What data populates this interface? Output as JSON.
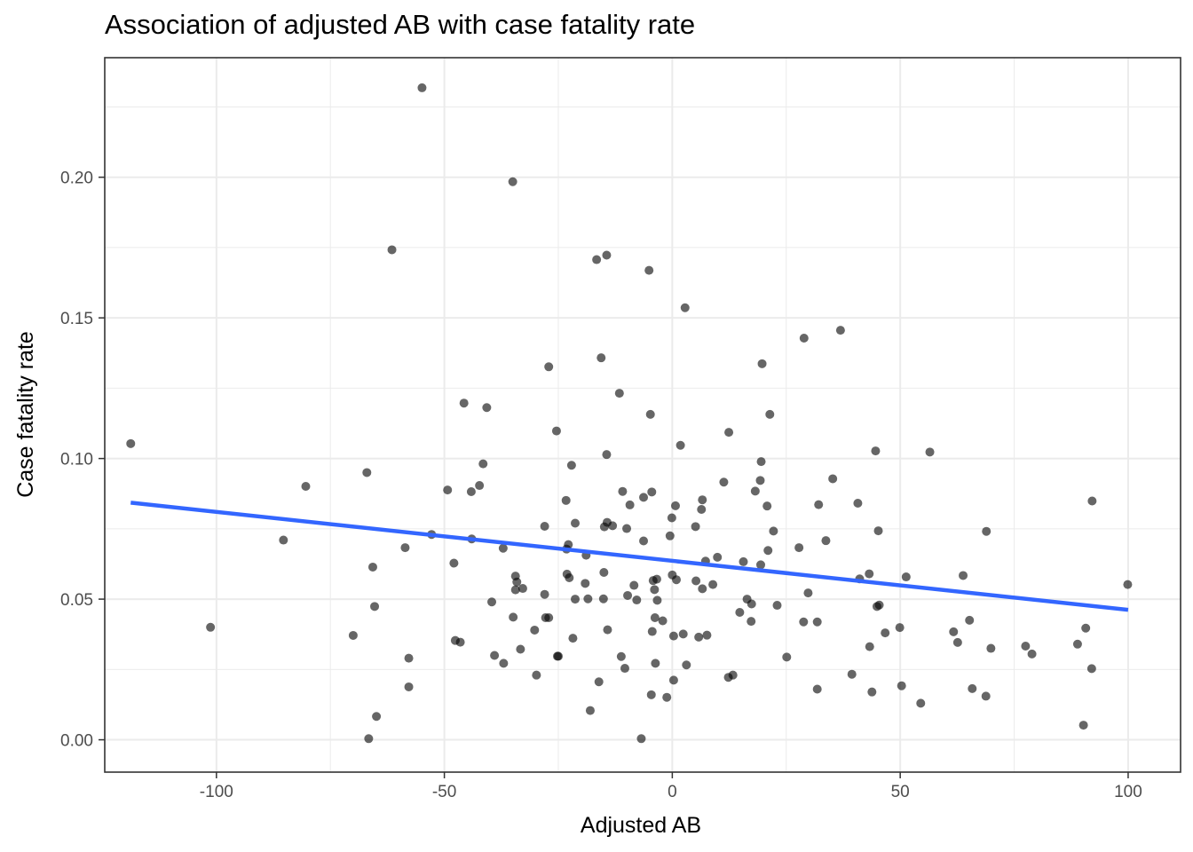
{
  "chart_data": {
    "type": "scatter",
    "title": "Association of adjusted AB with case fatality rate",
    "xlabel": "Adjusted AB",
    "ylabel": "Case fatality rate",
    "xlim": [
      -124.5,
      111.5
    ],
    "ylim": [
      -0.0115,
      0.2425
    ],
    "xticks": [
      -100,
      -50,
      0,
      50,
      100
    ],
    "xtick_labels": [
      "-100",
      "-50",
      "0",
      "50",
      "100"
    ],
    "yticks": [
      0.0,
      0.05,
      0.1,
      0.15,
      0.2
    ],
    "ytick_labels": [
      "0.00",
      "0.05",
      "0.10",
      "0.15",
      "0.20"
    ],
    "grid": true,
    "point_color": "#000000",
    "point_opacity": 0.6,
    "fit_line": {
      "color": "#3366FF",
      "x": [
        -118.8,
        100.0
      ],
      "y": [
        0.0843,
        0.0462
      ]
    },
    "points": [
      [
        -54.9,
        0.2318
      ],
      [
        -35.0,
        0.1984
      ],
      [
        -61.5,
        0.1742
      ],
      [
        -14.4,
        0.1723
      ],
      [
        -16.6,
        0.1707
      ],
      [
        -5.1,
        0.1669
      ],
      [
        2.8,
        0.1536
      ],
      [
        36.9,
        0.1456
      ],
      [
        28.9,
        0.1428
      ],
      [
        -15.6,
        0.1358
      ],
      [
        -27.1,
        0.1326
      ],
      [
        19.7,
        0.1337
      ],
      [
        -11.6,
        0.1232
      ],
      [
        -45.7,
        0.1197
      ],
      [
        -40.7,
        0.1181
      ],
      [
        -4.8,
        0.1157
      ],
      [
        21.4,
        0.1157
      ],
      [
        -25.4,
        0.1098
      ],
      [
        12.4,
        0.1093
      ],
      [
        -118.8,
        0.1053
      ],
      [
        1.8,
        0.1047
      ],
      [
        44.6,
        0.1027
      ],
      [
        56.5,
        0.1023
      ],
      [
        -14.4,
        0.1014
      ],
      [
        -41.5,
        0.0981
      ],
      [
        -22.1,
        0.0976
      ],
      [
        19.5,
        0.0989
      ],
      [
        -67.0,
        0.095
      ],
      [
        35.2,
        0.0928
      ],
      [
        -80.4,
        0.0901
      ],
      [
        -42.3,
        0.0904
      ],
      [
        -49.3,
        0.0888
      ],
      [
        11.3,
        0.0916
      ],
      [
        19.3,
        0.0922
      ],
      [
        -44.1,
        0.0882
      ],
      [
        -10.9,
        0.0883
      ],
      [
        -4.5,
        0.0881
      ],
      [
        18.2,
        0.0884
      ],
      [
        -6.3,
        0.0862
      ],
      [
        6.6,
        0.0853
      ],
      [
        -23.3,
        0.0851
      ],
      [
        -9.3,
        0.0835
      ],
      [
        0.7,
        0.0832
      ],
      [
        20.8,
        0.0831
      ],
      [
        32.1,
        0.0836
      ],
      [
        40.7,
        0.0841
      ],
      [
        92.1,
        0.0849
      ],
      [
        6.4,
        0.0819
      ],
      [
        -0.1,
        0.0789
      ],
      [
        -14.3,
        0.0773
      ],
      [
        -28.0,
        0.0759
      ],
      [
        -21.3,
        0.077
      ],
      [
        -14.9,
        0.0757
      ],
      [
        -10.0,
        0.0751
      ],
      [
        5.1,
        0.0758
      ],
      [
        -13.1,
        0.0761
      ],
      [
        22.2,
        0.0742
      ],
      [
        45.2,
        0.0743
      ],
      [
        68.9,
        0.0741
      ],
      [
        -52.8,
        0.073
      ],
      [
        -0.5,
        0.0725
      ],
      [
        -44.0,
        0.0714
      ],
      [
        -85.3,
        0.071
      ],
      [
        -6.3,
        0.0707
      ],
      [
        33.7,
        0.0708
      ],
      [
        -22.8,
        0.0694
      ],
      [
        -58.6,
        0.0683
      ],
      [
        -37.1,
        0.0681
      ],
      [
        -23.2,
        0.0678
      ],
      [
        21.0,
        0.0673
      ],
      [
        27.8,
        0.0683
      ],
      [
        9.9,
        0.0649
      ],
      [
        -18.9,
        0.0656
      ],
      [
        7.3,
        0.0635
      ],
      [
        15.6,
        0.0633
      ],
      [
        19.4,
        0.0622
      ],
      [
        -47.9,
        0.0628
      ],
      [
        -65.7,
        0.0614
      ],
      [
        -15.0,
        0.0595
      ],
      [
        -23.1,
        0.0589
      ],
      [
        43.2,
        0.059
      ],
      [
        63.8,
        0.0584
      ],
      [
        0.0,
        0.0586
      ],
      [
        -34.4,
        0.0582
      ],
      [
        -22.6,
        0.0576
      ],
      [
        -34.1,
        0.0561
      ],
      [
        -3.4,
        0.0571
      ],
      [
        -4.2,
        0.0566
      ],
      [
        0.9,
        0.0569
      ],
      [
        5.2,
        0.0565
      ],
      [
        41.1,
        0.0572
      ],
      [
        51.3,
        0.0579
      ],
      [
        -32.8,
        0.0538
      ],
      [
        -34.4,
        0.0533
      ],
      [
        -19.1,
        0.0556
      ],
      [
        -8.4,
        0.0549
      ],
      [
        8.9,
        0.0552
      ],
      [
        -3.9,
        0.0534
      ],
      [
        6.6,
        0.0537
      ],
      [
        99.9,
        0.0552
      ],
      [
        -28.0,
        0.0517
      ],
      [
        -9.8,
        0.0513
      ],
      [
        29.8,
        0.0522
      ],
      [
        -21.3,
        0.05
      ],
      [
        -18.5,
        0.0501
      ],
      [
        -15.1,
        0.0501
      ],
      [
        -7.8,
        0.0497
      ],
      [
        16.4,
        0.05
      ],
      [
        -39.6,
        0.049
      ],
      [
        -3.3,
        0.0496
      ],
      [
        17.4,
        0.0483
      ],
      [
        23.0,
        0.0478
      ],
      [
        -65.3,
        0.0474
      ],
      [
        44.9,
        0.0474
      ],
      [
        45.4,
        0.0479
      ],
      [
        14.8,
        0.0453
      ],
      [
        -34.9,
        0.0436
      ],
      [
        -27.8,
        0.0434
      ],
      [
        -27.1,
        0.0434
      ],
      [
        -3.8,
        0.0434
      ],
      [
        -2.1,
        0.0423
      ],
      [
        17.3,
        0.0421
      ],
      [
        28.8,
        0.0419
      ],
      [
        31.8,
        0.0419
      ],
      [
        65.2,
        0.0425
      ],
      [
        -30.2,
        0.039
      ],
      [
        -14.2,
        0.0391
      ],
      [
        -4.4,
        0.0385
      ],
      [
        2.4,
        0.0376
      ],
      [
        7.6,
        0.0372
      ],
      [
        -101.3,
        0.04
      ],
      [
        -70.0,
        0.0371
      ],
      [
        0.3,
        0.0369
      ],
      [
        5.8,
        0.0365
      ],
      [
        46.7,
        0.038
      ],
      [
        49.9,
        0.0399
      ],
      [
        61.7,
        0.0384
      ],
      [
        62.6,
        0.0346
      ],
      [
        -47.6,
        0.0353
      ],
      [
        -46.5,
        0.0347
      ],
      [
        -21.8,
        0.0361
      ],
      [
        43.3,
        0.0331
      ],
      [
        69.9,
        0.0325
      ],
      [
        77.5,
        0.0333
      ],
      [
        88.9,
        0.034
      ],
      [
        90.7,
        0.0397
      ],
      [
        -33.3,
        0.0322
      ],
      [
        -39.0,
        0.03
      ],
      [
        -57.8,
        0.029
      ],
      [
        -25.2,
        0.0297
      ],
      [
        -25.0,
        0.0297
      ],
      [
        -11.2,
        0.0296
      ],
      [
        25.1,
        0.0294
      ],
      [
        78.9,
        0.0305
      ],
      [
        -37.0,
        0.0272
      ],
      [
        -3.7,
        0.0272
      ],
      [
        3.1,
        0.0266
      ],
      [
        -10.4,
        0.0254
      ],
      [
        92.0,
        0.0253
      ],
      [
        39.4,
        0.0233
      ],
      [
        12.3,
        0.0222
      ],
      [
        13.3,
        0.023
      ],
      [
        -29.8,
        0.023
      ],
      [
        0.3,
        0.0212
      ],
      [
        -16.1,
        0.0206
      ],
      [
        -57.8,
        0.0188
      ],
      [
        31.8,
        0.018
      ],
      [
        50.3,
        0.0192
      ],
      [
        43.8,
        0.017
      ],
      [
        65.8,
        0.0182
      ],
      [
        -4.6,
        0.016
      ],
      [
        -1.2,
        0.0151
      ],
      [
        68.8,
        0.0155
      ],
      [
        54.5,
        0.013
      ],
      [
        -18.0,
        0.0104
      ],
      [
        -64.9,
        0.0083
      ],
      [
        90.2,
        0.0052
      ],
      [
        -66.6,
        0.0004
      ],
      [
        -6.8,
        0.0004
      ]
    ]
  }
}
